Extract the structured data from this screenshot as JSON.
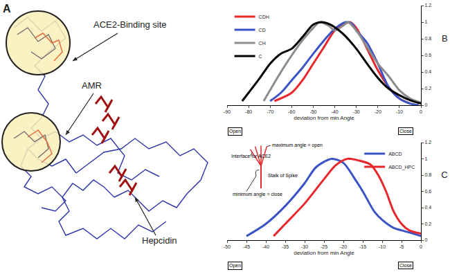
{
  "diagram": {
    "label": "A",
    "callouts": [
      "ACE2-Binding site",
      "AMR",
      "Hepcidin"
    ]
  },
  "chart_data": [
    {
      "type": "line",
      "title": "B",
      "x_label": "deviation from min Angle",
      "xlim": [
        -90,
        0
      ],
      "xticks": [
        -90,
        -80,
        -70,
        -60,
        -50,
        -40,
        -30,
        -20,
        -10,
        0
      ],
      "ylim": [
        0,
        1.2
      ],
      "yticks": [
        0,
        0.2,
        0.4,
        0.6,
        0.8,
        1,
        1.2
      ],
      "legend": "upper left",
      "annotations": [
        "Open",
        "Close"
      ],
      "series": [
        {
          "name": "CDH",
          "color": "#e8262b",
          "x": [
            -68,
            -60,
            -55,
            -50,
            -45,
            -40,
            -36,
            -33,
            -30,
            -25,
            -20,
            -15,
            -10,
            -5
          ],
          "values": [
            0.05,
            0.15,
            0.3,
            0.5,
            0.7,
            0.9,
            0.97,
            1.0,
            0.93,
            0.68,
            0.42,
            0.22,
            0.08,
            0.02
          ]
        },
        {
          "name": "CD",
          "color": "#3a53c5",
          "x": [
            -70,
            -65,
            -60,
            -55,
            -50,
            -45,
            -40,
            -35,
            -32,
            -30,
            -25,
            -20,
            -15,
            -10,
            -5,
            -1
          ],
          "values": [
            0.05,
            0.15,
            0.3,
            0.45,
            0.62,
            0.78,
            0.92,
            1.0,
            0.98,
            0.9,
            0.75,
            0.5,
            0.22,
            0.08,
            0.02,
            0.0
          ]
        },
        {
          "name": "CH",
          "color": "#8c8c8c",
          "x": [
            -73,
            -65,
            -60,
            -55,
            -50,
            -47,
            -43,
            -40,
            -36,
            -34,
            -30,
            -25,
            -20,
            -15,
            -10,
            -5,
            0
          ],
          "values": [
            0.05,
            0.4,
            0.6,
            0.78,
            0.93,
            1.0,
            0.96,
            0.9,
            0.96,
            1.0,
            0.9,
            0.7,
            0.5,
            0.35,
            0.18,
            0.08,
            0.03
          ]
        },
        {
          "name": "C",
          "color": "#000000",
          "x": [
            -83,
            -80,
            -75,
            -70,
            -65,
            -60,
            -55,
            -50,
            -46,
            -42,
            -38,
            -35,
            -30,
            -25,
            -20,
            -15,
            -10,
            -5,
            0
          ],
          "values": [
            0.05,
            0.15,
            0.32,
            0.5,
            0.62,
            0.68,
            0.82,
            0.97,
            1.0,
            0.97,
            0.9,
            0.83,
            0.68,
            0.5,
            0.33,
            0.2,
            0.12,
            0.06,
            0.02
          ]
        }
      ]
    },
    {
      "type": "line",
      "title": "C",
      "x_label": "deviation from min Angle",
      "xlim": [
        -50,
        0
      ],
      "xticks": [
        -50,
        -45,
        -40,
        -35,
        -30,
        -25,
        -20,
        -15,
        -10,
        -5,
        0
      ],
      "ylim": [
        0,
        1.2
      ],
      "yticks": [
        0,
        0.2,
        0.4,
        0.6,
        0.8,
        1,
        1.2
      ],
      "legend": "upper right",
      "annotations": [
        "Open",
        "Close",
        "Interface for ACE2",
        "maximum angle = open",
        "Stalk of Spike",
        "minimum angle = close"
      ],
      "series": [
        {
          "name": "ABCD",
          "color": "#3a53c5",
          "x": [
            -45,
            -40,
            -35,
            -30,
            -27,
            -23,
            -20,
            -17,
            -15,
            -12,
            -10,
            -7,
            -5,
            -2,
            0
          ],
          "values": [
            0.05,
            0.2,
            0.42,
            0.7,
            0.9,
            1.0,
            0.95,
            0.75,
            0.6,
            0.35,
            0.25,
            0.15,
            0.12,
            0.08,
            0.05
          ]
        },
        {
          "name": "ABCD_HPC",
          "color": "#e8262b",
          "x": [
            -38,
            -35,
            -30,
            -25,
            -22,
            -19,
            -16,
            -13,
            -11,
            -9,
            -7,
            -5,
            -3,
            0
          ],
          "values": [
            0.05,
            0.2,
            0.45,
            0.75,
            0.92,
            1.0,
            0.98,
            0.93,
            0.8,
            0.6,
            0.35,
            0.2,
            0.12,
            0.08
          ]
        }
      ]
    }
  ]
}
